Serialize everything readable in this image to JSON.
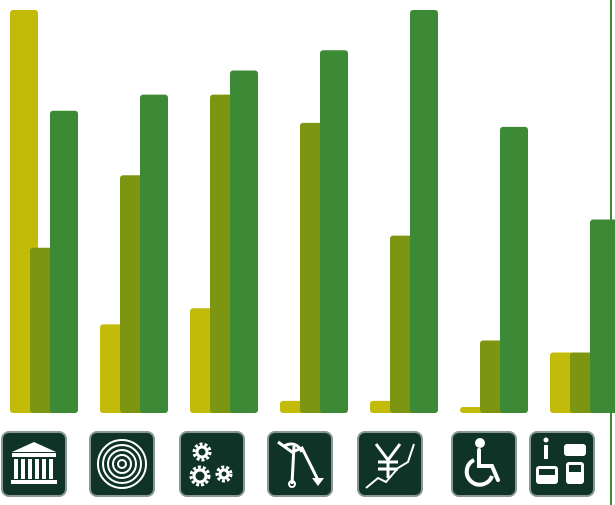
{
  "chart_data": {
    "type": "bar",
    "categories": [
      "government",
      "energy",
      "industry",
      "mining",
      "finance",
      "social-services",
      "transport"
    ],
    "category_icons": [
      "government-building-icon",
      "concentric-rings-icon",
      "gears-icon",
      "pickaxe-wrench-decline-icon",
      "yen-trend-icon",
      "wheelchair-icon",
      "transport-info-icon"
    ],
    "series": [
      {
        "values": [
          100,
          22,
          26,
          3,
          3,
          1.5,
          15
        ]
      },
      {
        "values": [
          41,
          59,
          79,
          72,
          44,
          18,
          15
        ]
      },
      {
        "values": [
          75,
          79,
          85,
          90,
          100,
          71,
          48
        ]
      }
    ],
    "ylim": [
      0,
      100
    ],
    "legend": "none",
    "grid": false,
    "colors": {
      "series": [
        "#c2bb0a",
        "#7d9611",
        "#3c8a35"
      ],
      "icon_bg": "#0f3326",
      "icon_border": "#8a9a92",
      "icon_fg": "#ffffff"
    }
  }
}
